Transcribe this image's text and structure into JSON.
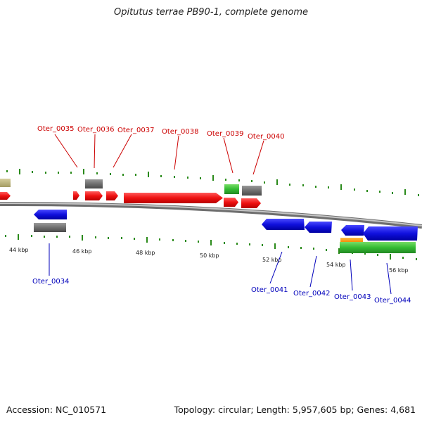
{
  "title": "Opitutus terrae PB90-1, complete genome",
  "footer": {
    "accession": "Accession: NC_010571",
    "summary": "Topology: circular; Length: 5,957,605 bp; Genes: 4,681"
  },
  "colors": {
    "backbone": "#8a8a8a",
    "gene_forward": "#ee1111",
    "gene_reverse": "#1010dd",
    "gene_gray": "#6f6f6f",
    "gene_green": "#33bb33",
    "gene_orange": "#ff9900",
    "gene_tan": "#b8b07a",
    "tick": "#2a8a1a",
    "label_forward": "#cc0000",
    "label_reverse": "#0000bb"
  },
  "scale_labels": [
    "44 kbp",
    "46 kbp",
    "48 kbp",
    "50 kbp",
    "52 kbp",
    "54 kbp",
    "56 kbp"
  ],
  "forward_labels": [
    "Oter_0035",
    "Oter_0036",
    "Oter_0037",
    "Oter_0038",
    "Oter_0039",
    "Oter_0040"
  ],
  "reverse_labels": [
    "Oter_0034",
    "Oter_0041",
    "Oter_0042",
    "Oter_0043",
    "Oter_0044"
  ]
}
